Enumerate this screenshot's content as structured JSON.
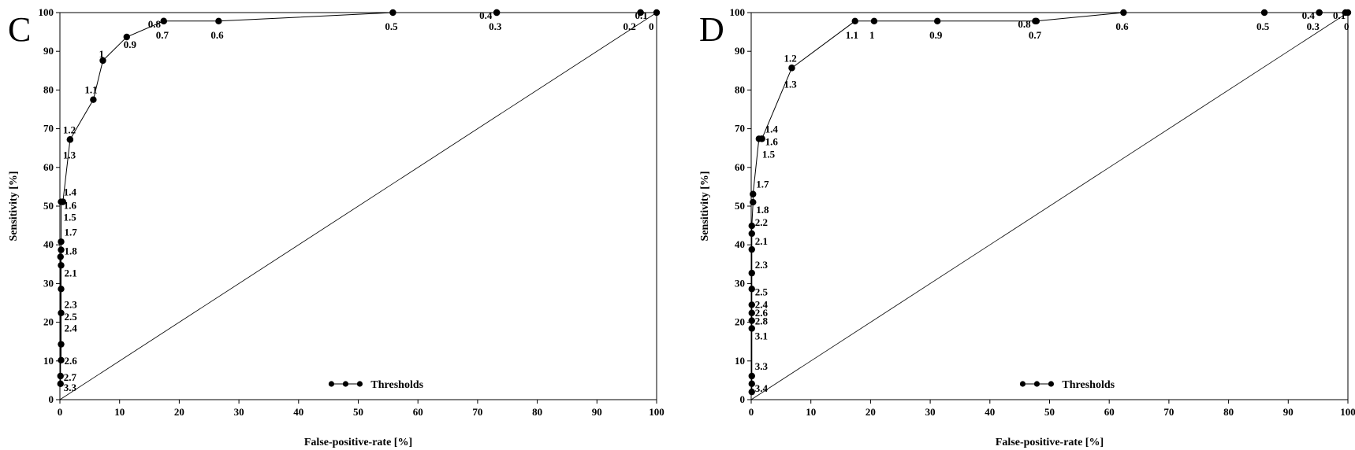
{
  "chart_data": [
    {
      "type": "line",
      "panel": "C",
      "xlabel": "False-positive-rate [%]",
      "ylabel": "Sensitivity [%]",
      "xlim": [
        0,
        100
      ],
      "ylim": [
        0,
        100
      ],
      "xticks": [
        0,
        10,
        20,
        30,
        40,
        50,
        60,
        70,
        80,
        90,
        100
      ],
      "yticks": [
        0,
        10,
        20,
        30,
        40,
        50,
        60,
        70,
        80,
        90,
        100
      ],
      "reference_line": true,
      "legend": {
        "label": "Thresholds",
        "placement": "bottom-center"
      },
      "series": [
        {
          "name": "Thresholds",
          "points": [
            {
              "x": 100,
              "y": 100,
              "label": "0"
            },
            {
              "x": 97.3,
              "y": 100,
              "label": "0.1"
            },
            {
              "x": 97.3,
              "y": 100,
              "label": "0.2"
            },
            {
              "x": 73.2,
              "y": 100,
              "label": "0.3"
            },
            {
              "x": 73.2,
              "y": 100,
              "label": "0.4"
            },
            {
              "x": 55.8,
              "y": 100,
              "label": "0.5"
            },
            {
              "x": 26.6,
              "y": 97.8,
              "label": "0.6"
            },
            {
              "x": 17.4,
              "y": 97.8,
              "label": "0.7"
            },
            {
              "x": 17.4,
              "y": 97.8,
              "label": "0.8"
            },
            {
              "x": 11.2,
              "y": 93.7,
              "label": "0.9"
            },
            {
              "x": 7.2,
              "y": 87.6,
              "label": "1"
            },
            {
              "x": 5.6,
              "y": 77.5,
              "label": "1.1"
            },
            {
              "x": 1.7,
              "y": 67.2,
              "label": "1.2"
            },
            {
              "x": 1.7,
              "y": 67.2,
              "label": "1.3"
            },
            {
              "x": 0.5,
              "y": 51.1,
              "label": "1.4"
            },
            {
              "x": 0.2,
              "y": 51.1,
              "label": "1.5"
            },
            {
              "x": 0.5,
              "y": 51.1,
              "label": "1.6"
            },
            {
              "x": 0.2,
              "y": 40.8,
              "label": "1.7"
            },
            {
              "x": 0.2,
              "y": 38.7,
              "label": "1.8"
            },
            {
              "x": 0.1,
              "y": 36.9,
              "label": ""
            },
            {
              "x": 0.2,
              "y": 34.7,
              "label": "2.1"
            },
            {
              "x": 0.2,
              "y": 28.6,
              "label": "2.3"
            },
            {
              "x": 0.2,
              "y": 22.4,
              "label": "2.5"
            },
            {
              "x": 0.2,
              "y": 14.3,
              "label": "2.4"
            },
            {
              "x": 0.2,
              "y": 10.2,
              "label": "2.6"
            },
            {
              "x": 0.1,
              "y": 6.1,
              "label": "2.7"
            },
            {
              "x": 0.1,
              "y": 4.1,
              "label": "3.3"
            }
          ]
        }
      ]
    },
    {
      "type": "line",
      "panel": "D",
      "xlabel": "False-positive-rate [%]",
      "ylabel": "Sensitivity [%]",
      "xlim": [
        0,
        100
      ],
      "ylim": [
        0,
        100
      ],
      "xticks": [
        0,
        10,
        20,
        30,
        40,
        50,
        60,
        70,
        80,
        90,
        100
      ],
      "yticks": [
        0,
        10,
        20,
        30,
        40,
        50,
        60,
        70,
        80,
        90,
        100
      ],
      "reference_line": true,
      "legend": {
        "label": "Thresholds",
        "placement": "bottom-center"
      },
      "series": [
        {
          "name": "Thresholds",
          "points": [
            {
              "x": 100,
              "y": 100,
              "label": "0"
            },
            {
              "x": 99.6,
              "y": 100,
              "label": "0.1"
            },
            {
              "x": 95.2,
              "y": 100,
              "label": "0.3"
            },
            {
              "x": 95.2,
              "y": 100,
              "label": "0.4"
            },
            {
              "x": 86,
              "y": 100,
              "label": "0.5"
            },
            {
              "x": 62.4,
              "y": 100,
              "label": "0.6"
            },
            {
              "x": 47.8,
              "y": 97.8,
              "label": "0.7"
            },
            {
              "x": 47.6,
              "y": 97.8,
              "label": "0.8"
            },
            {
              "x": 31.2,
              "y": 97.8,
              "label": "0.9"
            },
            {
              "x": 20.6,
              "y": 97.8,
              "label": "1"
            },
            {
              "x": 17.4,
              "y": 97.8,
              "label": "1.1"
            },
            {
              "x": 6.8,
              "y": 85.7,
              "label": "1.2"
            },
            {
              "x": 6.8,
              "y": 85.7,
              "label": "1.3"
            },
            {
              "x": 1.8,
              "y": 67.4,
              "label": "1.4"
            },
            {
              "x": 1.3,
              "y": 67.4,
              "label": "1.5"
            },
            {
              "x": 1.8,
              "y": 67.4,
              "label": "1.6"
            },
            {
              "x": 0.3,
              "y": 53.1,
              "label": "1.7"
            },
            {
              "x": 0.3,
              "y": 51.0,
              "label": "1.8"
            },
            {
              "x": 0.1,
              "y": 44.9,
              "label": "2.2"
            },
            {
              "x": 0.1,
              "y": 42.9,
              "label": "2.1"
            },
            {
              "x": 0.1,
              "y": 38.8,
              "label": ""
            },
            {
              "x": 0.1,
              "y": 32.7,
              "label": "2.3"
            },
            {
              "x": 0.1,
              "y": 28.6,
              "label": "2.5"
            },
            {
              "x": 0.1,
              "y": 24.5,
              "label": "2.4"
            },
            {
              "x": 0.1,
              "y": 22.4,
              "label": "2.6"
            },
            {
              "x": 0.1,
              "y": 20.4,
              "label": "2.8"
            },
            {
              "x": 0.1,
              "y": 18.4,
              "label": "3.1"
            },
            {
              "x": 0.1,
              "y": 6.1,
              "label": "3.3"
            },
            {
              "x": 0.1,
              "y": 4.1,
              "label": "3.4"
            },
            {
              "x": 0.1,
              "y": 2.0,
              "label": ""
            }
          ]
        }
      ]
    }
  ]
}
